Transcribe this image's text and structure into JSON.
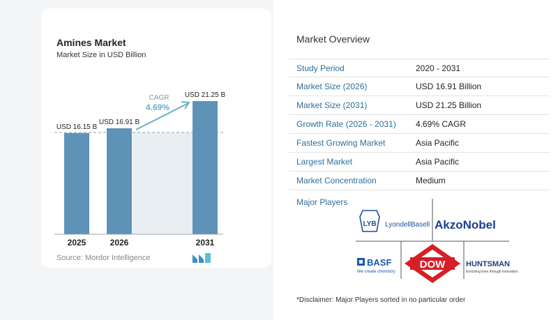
{
  "chart_data": {
    "type": "bar",
    "title": "Amines Market",
    "subtitle": "Market Size in USD Billion",
    "categories": [
      "2025",
      "2026",
      "2031"
    ],
    "values": [
      16.15,
      16.91,
      21.25
    ],
    "value_labels": [
      "USD 16.15 B",
      "USD 16.91 B",
      "USD 21.25 B"
    ],
    "cagr_label": "CAGR",
    "cagr_value": "4.69%",
    "bar_color": "#5e93b7",
    "accent_color": "#68b0cc"
  },
  "source": "Source:  Mordor Intelligence",
  "overview": {
    "title": "Market Overview",
    "rows": [
      {
        "key": "Study Period",
        "value": "2020 - 2031"
      },
      {
        "key": "Market Size (2026)",
        "value": "USD 16.91 Billion"
      },
      {
        "key": "Market Size (2031)",
        "value": "USD 21.25 Billion"
      },
      {
        "key": "Growth Rate (2026 - 2031)",
        "value": "4.69% CAGR"
      },
      {
        "key": "Fastest Growing Market",
        "value": "Asia Pacific"
      },
      {
        "key": "Largest Market",
        "value": "Asia Pacific"
      },
      {
        "key": "Market Concentration",
        "value": "Medium"
      }
    ]
  },
  "players": {
    "label": "Major Players",
    "lyb": "LYB",
    "lyondell": "LyondellBasell",
    "akzonobel": "AkzoNobel",
    "basf": "BASF",
    "basf_tagline": "We create chemistry",
    "dow": "DOW",
    "huntsman": "HUNTSMAN",
    "huntsman_tagline": "Enriching lives through innovation"
  },
  "disclaimer": "*Disclaimer: Major Players sorted in no particular order"
}
